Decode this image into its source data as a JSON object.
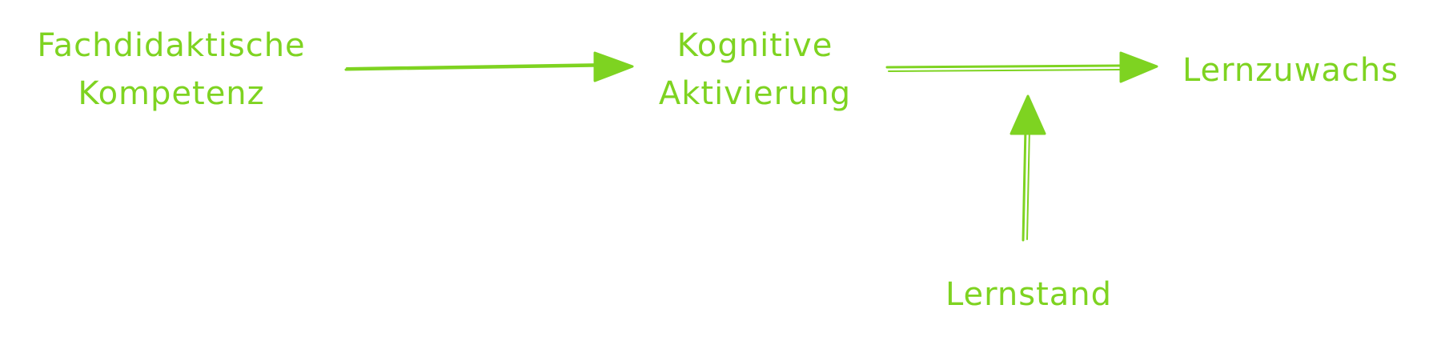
{
  "diagram": {
    "stroke_color": "#7ed321",
    "nodes": {
      "fachdidaktische_kompetenz": {
        "lines": [
          "Fachdidaktische",
          "Kompetenz"
        ]
      },
      "kognitive_aktivierung": {
        "lines": [
          "Kognitive",
          "Aktivierung"
        ]
      },
      "lernzuwachs": {
        "lines": [
          "Lernzuwachs"
        ]
      },
      "lernstand": {
        "lines": [
          "Lernstand"
        ]
      }
    },
    "edges": [
      {
        "from": "Fachdidaktische Kompetenz",
        "to": "Kognitive Aktivierung"
      },
      {
        "from": "Kognitive Aktivierung",
        "to": "Lernzuwachs"
      },
      {
        "from": "Lernstand",
        "to": "Lernzuwachs"
      }
    ]
  }
}
